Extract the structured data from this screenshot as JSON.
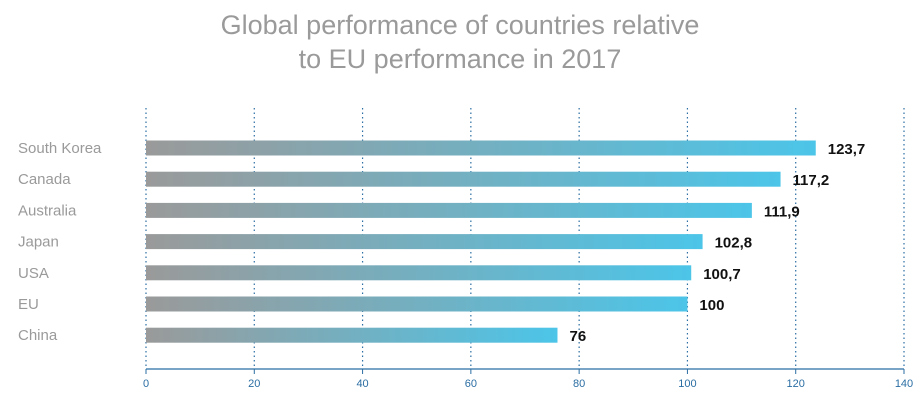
{
  "title_line1": "Global performance of countries relative",
  "title_line2": "to EU performance in 2017",
  "chart_data": {
    "type": "bar",
    "orientation": "horizontal",
    "title": "Global performance of countries relative to EU performance in 2017",
    "categories": [
      "South Korea",
      "Canada",
      "Australia",
      "Japan",
      "USA",
      "EU",
      "China"
    ],
    "values": [
      123.7,
      117.2,
      111.9,
      102.8,
      100.7,
      100,
      76
    ],
    "value_labels": [
      "123,7",
      "117,2",
      "111,9",
      "102,8",
      "100,7",
      "100",
      "76"
    ],
    "x_ticks": [
      0,
      20,
      40,
      60,
      80,
      100,
      120,
      140
    ],
    "xlim": [
      0,
      140
    ],
    "xlabel": "",
    "ylabel": "",
    "grid": "vertical dotted",
    "legend": "none",
    "colors": {
      "bar_start": "#9a9a9a",
      "bar_end": "#4cc5e8",
      "grid": "#2b6ea3",
      "axis": "#2b6ea3",
      "category_text": "#9a9a9a",
      "value_text": "#111111",
      "title_text": "#9a9a9a"
    }
  }
}
